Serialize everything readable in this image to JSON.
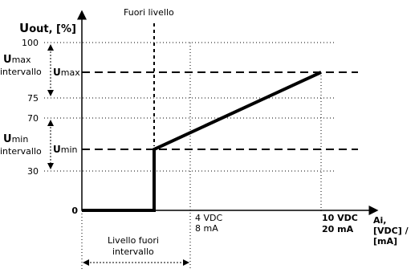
{
  "title_top": "Fuori livello",
  "y_axis": {
    "label_bold": "U",
    "label_rest": "out, [%]"
  },
  "x_axis": {
    "label_line1": "Ai,",
    "label_line2": "[VDC] /",
    "label_line3": "[mA]"
  },
  "y_ticks": [
    "100",
    "75",
    "70",
    "30",
    "0"
  ],
  "umax_interval": {
    "bold": "U",
    "rest": "max",
    "line2": "intervallo"
  },
  "umin_interval": {
    "bold": "U",
    "rest": "min",
    "line2": "intervallo"
  },
  "umax_marker": {
    "bold": "U",
    "rest": "max"
  },
  "umin_marker": {
    "bold": "U",
    "rest": "min"
  },
  "x_mark_4": {
    "line1": "4 VDC",
    "line2": "8 mA"
  },
  "x_mark_10": {
    "line1": "10 VDC",
    "line2": "20 mA"
  },
  "out_of_range": {
    "line1": "Livello fuori",
    "line2": "intervallo"
  },
  "chart_data": {
    "type": "line",
    "series": [
      {
        "points": [
          [
            0,
            0
          ],
          [
            2,
            0
          ],
          [
            2,
            35
          ],
          [
            10,
            85
          ]
        ]
      }
    ],
    "reference_lines": {
      "umax": 85,
      "umin": 35
    },
    "x_marks": [
      "4 VDC / 8 mA",
      "10 VDC / 20 mA"
    ],
    "y_ticks": [
      0,
      30,
      70,
      75,
      100
    ]
  }
}
